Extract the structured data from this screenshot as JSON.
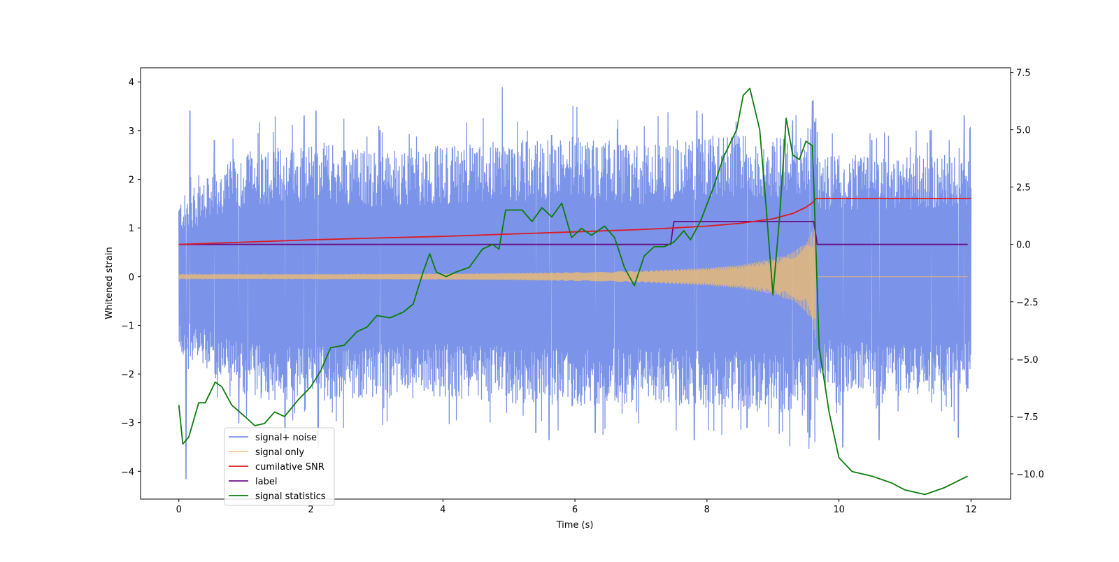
{
  "chart_data": {
    "type": "line",
    "xlabel": "Time (s)",
    "ylabel": "Whitened strain",
    "xlim": [
      -0.58,
      12.6
    ],
    "ylim": [
      -4.57,
      4.29
    ],
    "y2lim": [
      -11.1,
      7.7
    ],
    "xticks": [
      0,
      2,
      4,
      6,
      8,
      10,
      12
    ],
    "yticks": [
      -4,
      -3,
      -2,
      -1,
      0,
      1,
      2,
      3,
      4
    ],
    "y2ticks": [
      -10.0,
      -7.5,
      -5.0,
      -2.5,
      0.0,
      2.5,
      5.0,
      7.5
    ],
    "xtick_labels": [
      "0",
      "2",
      "4",
      "6",
      "8",
      "10",
      "12"
    ],
    "ytick_labels": [
      "−4",
      "−3",
      "−2",
      "−1",
      "0",
      "1",
      "2",
      "3",
      "4"
    ],
    "y2tick_labels": [
      "−10.0",
      "−7.5",
      "−5.0",
      "−2.5",
      "0.0",
      "2.5",
      "5.0",
      "7.5"
    ],
    "grid": false,
    "legend_location": "lower left",
    "series": [
      {
        "name": "signal+ noise",
        "axis": "left",
        "color": "#7b93e8",
        "envelope": {
          "x": [
            0,
            1,
            2,
            3,
            4,
            5,
            6,
            7,
            8,
            9,
            9.5,
            9.65,
            9.7,
            10,
            11,
            12
          ],
          "upper": [
            1.6,
            2.6,
            2.8,
            2.6,
            2.7,
            2.8,
            2.9,
            2.7,
            2.9,
            2.9,
            3.0,
            3.3,
            2.5,
            2.5,
            2.5,
            2.5
          ],
          "lower": [
            -1.6,
            -2.5,
            -2.6,
            -2.5,
            -2.5,
            -2.6,
            -2.7,
            -2.6,
            -2.7,
            -2.8,
            -2.9,
            -3.0,
            -2.3,
            -2.4,
            -2.5,
            -2.4
          ]
        },
        "peaks": [
          {
            "x": 0.17,
            "y": 3.4
          },
          {
            "x": 0.54,
            "y": 2.8
          },
          {
            "x": 1.05,
            "y": 2.5
          },
          {
            "x": 1.9,
            "y": 3.3
          },
          {
            "x": 2.08,
            "y": 3.4
          },
          {
            "x": 3.05,
            "y": 3.0
          },
          {
            "x": 4.9,
            "y": 3.9
          },
          {
            "x": 5.65,
            "y": 2.9
          },
          {
            "x": 6.6,
            "y": 2.6
          },
          {
            "x": 7.85,
            "y": 3.4
          },
          {
            "x": 9.3,
            "y": 3.2
          },
          {
            "x": 9.6,
            "y": 3.6
          },
          {
            "x": 10.5,
            "y": 2.8
          },
          {
            "x": 11.4,
            "y": 3.0
          },
          {
            "x": 11.9,
            "y": 3.3
          }
        ],
        "troughs": [
          {
            "x": 0.1,
            "y": -4.15
          },
          {
            "x": 0.9,
            "y": -3.0
          },
          {
            "x": 1.6,
            "y": -3.4
          },
          {
            "x": 2.1,
            "y": -3.5
          },
          {
            "x": 5.4,
            "y": -3.2
          },
          {
            "x": 5.6,
            "y": -3.35
          },
          {
            "x": 6.3,
            "y": -3.2
          },
          {
            "x": 7.8,
            "y": -3.35
          },
          {
            "x": 8.6,
            "y": -3.1
          },
          {
            "x": 9.55,
            "y": -3.3
          },
          {
            "x": 10.05,
            "y": -3.5
          },
          {
            "x": 10.6,
            "y": -3.35
          },
          {
            "x": 11.8,
            "y": -3.3
          }
        ]
      },
      {
        "name": "signal only",
        "axis": "left",
        "color": "#f5bd6a",
        "amplitude": {
          "x": [
            0,
            2,
            4,
            5,
            6,
            7,
            8,
            8.5,
            9,
            9.3,
            9.5,
            9.6,
            9.65
          ],
          "y": [
            0.05,
            0.05,
            0.06,
            0.07,
            0.09,
            0.12,
            0.18,
            0.24,
            0.37,
            0.5,
            0.72,
            0.95,
            1.3
          ]
        },
        "after_merger": 0.0
      },
      {
        "name": "cumilative SNR",
        "axis": "right",
        "color": "#e0191e",
        "x": [
          0,
          1,
          2,
          3,
          4,
          5,
          6,
          7,
          7.5,
          8,
          8.5,
          9,
          9.3,
          9.5,
          9.6,
          9.65,
          9.7,
          10,
          11,
          12
        ],
        "y": [
          0.0,
          0.1,
          0.2,
          0.28,
          0.35,
          0.45,
          0.55,
          0.65,
          0.72,
          0.8,
          0.92,
          1.12,
          1.35,
          1.62,
          1.82,
          2.0,
          2.0,
          2.0,
          2.0,
          2.0
        ]
      },
      {
        "name": "label",
        "axis": "right",
        "color": "#6a0d83",
        "x": [
          0,
          7.45,
          7.5,
          9.62,
          9.67,
          11.95
        ],
        "y": [
          0,
          0,
          1,
          1,
          0,
          0
        ]
      },
      {
        "name": "signal statistics",
        "axis": "right",
        "color": "#0a7d0a",
        "x": [
          0,
          0.06,
          0.15,
          0.3,
          0.4,
          0.55,
          0.65,
          0.8,
          1.0,
          1.15,
          1.3,
          1.45,
          1.6,
          1.8,
          2.0,
          2.15,
          2.3,
          2.5,
          2.7,
          2.85,
          3.0,
          3.2,
          3.4,
          3.55,
          3.7,
          3.8,
          3.9,
          4.05,
          4.2,
          4.4,
          4.6,
          4.75,
          4.85,
          4.95,
          5.05,
          5.2,
          5.35,
          5.5,
          5.65,
          5.8,
          5.95,
          6.1,
          6.25,
          6.45,
          6.6,
          6.75,
          6.9,
          7.05,
          7.2,
          7.35,
          7.5,
          7.65,
          7.75,
          7.9,
          8.1,
          8.25,
          8.45,
          8.55,
          8.65,
          8.8,
          8.9,
          9.0,
          9.1,
          9.2,
          9.3,
          9.4,
          9.5,
          9.6,
          9.7,
          9.85,
          10.0,
          10.2,
          10.5,
          10.8,
          11.0,
          11.3,
          11.6,
          11.95
        ],
        "y": [
          -7.0,
          -8.7,
          -8.4,
          -6.9,
          -6.9,
          -6.0,
          -6.2,
          -7.0,
          -7.5,
          -7.9,
          -7.8,
          -7.3,
          -7.5,
          -6.8,
          -6.2,
          -5.5,
          -4.5,
          -4.4,
          -3.8,
          -3.6,
          -3.1,
          -3.2,
          -2.95,
          -2.6,
          -1.2,
          -0.4,
          -1.2,
          -1.4,
          -1.2,
          -1.0,
          -0.2,
          0.0,
          -0.2,
          1.5,
          1.5,
          1.5,
          1.0,
          1.6,
          1.2,
          1.8,
          0.3,
          0.7,
          0.4,
          0.8,
          0.3,
          -1.0,
          -1.8,
          -0.5,
          -0.1,
          -0.1,
          0.1,
          0.6,
          0.2,
          1.0,
          2.5,
          3.8,
          5.0,
          6.5,
          6.8,
          5.0,
          1.5,
          -2.2,
          1.2,
          5.5,
          3.9,
          3.7,
          4.5,
          4.3,
          -4.5,
          -7.3,
          -9.3,
          -9.9,
          -10.1,
          -10.4,
          -10.7,
          -10.9,
          -10.6,
          -10.1
        ]
      }
    ]
  }
}
